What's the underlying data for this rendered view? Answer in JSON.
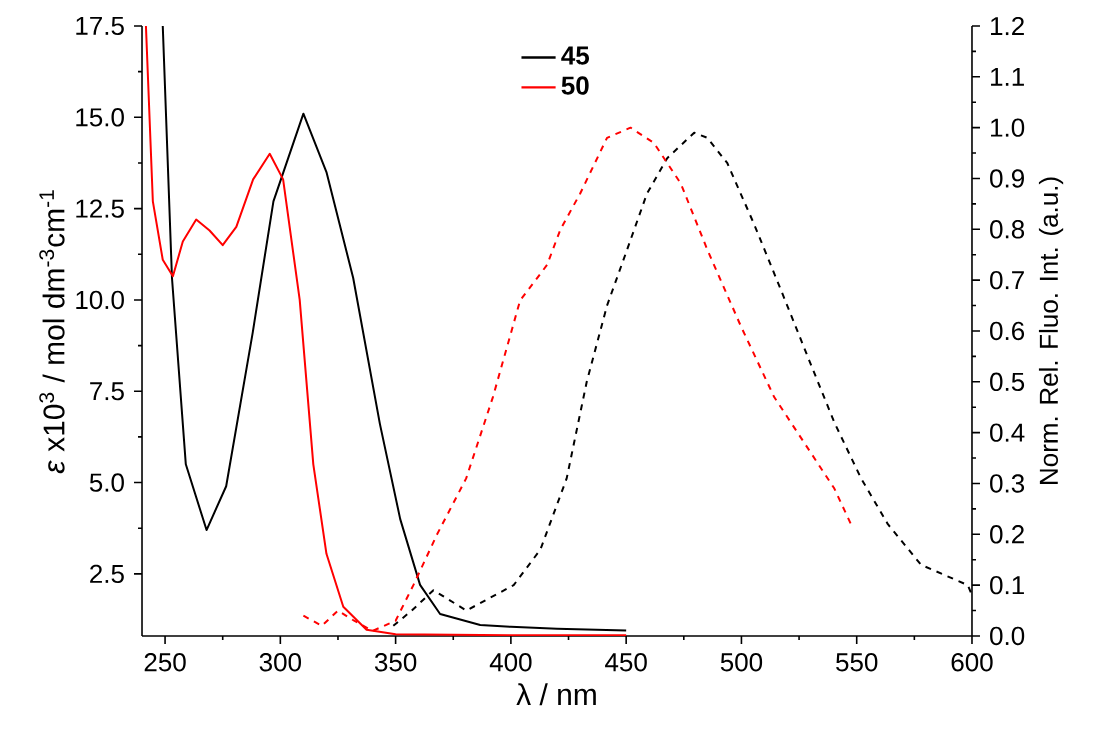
{
  "chart_data": {
    "type": "line",
    "xlabel": "λ / nm",
    "ylabel": "*ε* x10$^{3}$ / mol dm$^{-3}$cm$^{-1}$",
    "y2label": "Norm. Rel. Fluo. Int. (a.u.)",
    "xlim": [
      240,
      600
    ],
    "xticks": [
      250,
      300,
      350,
      400,
      450,
      500,
      550,
      600
    ],
    "ylim": [
      0.8,
      17.5
    ],
    "yticks": [
      2.5,
      {
        "value": 5,
        "label": "5.0"
      },
      7.5,
      {
        "value": 10,
        "label": "10.0"
      },
      12.5,
      {
        "value": 15,
        "label": "15.0"
      },
      17.5
    ],
    "y2lim": [
      0,
      1.2
    ],
    "y2ticks": [
      {
        "value": 0,
        "label": "0.0"
      },
      0.1,
      0.2,
      0.3,
      0.4,
      0.5,
      0.6,
      0.7,
      0.8,
      0.9,
      {
        "value": 1,
        "label": "1.0"
      },
      1.1,
      1.2
    ],
    "legend": "top",
    "series": [
      {
        "name": "45",
        "color": "#000000",
        "line_style": "solid",
        "x": [
          249,
          253,
          259,
          268,
          276.5,
          288,
          297,
          310,
          320,
          331.6,
          343.2,
          352,
          360.6,
          369.3,
          386.7,
          400,
          420,
          450
        ],
        "values": [
          17.5,
          10.6,
          5.5,
          3.7,
          4.9,
          9.1,
          12.7,
          15.1,
          13.5,
          10.6,
          6.6,
          4.0,
          2.2,
          1.4,
          1.1,
          1.05,
          1.0,
          0.95
        ]
      },
      {
        "name": "50",
        "color": "#ff0000",
        "line_style": "solid",
        "x": [
          241.7,
          244.7,
          249,
          253.4,
          257.7,
          263.5,
          269.3,
          275,
          280.9,
          288.2,
          295.4,
          301.2,
          308.4,
          314.3,
          320,
          327.3,
          337.4,
          350,
          400,
          450
        ],
        "values": [
          17.5,
          12.7,
          11.1,
          10.65,
          11.6,
          12.2,
          11.9,
          11.5,
          12.0,
          13.3,
          14.0,
          13.3,
          10.0,
          5.5,
          3.05,
          1.6,
          0.97,
          0.85,
          0.82,
          0.82
        ]
      },
      {
        "color": "#000000",
        "line_style": "dashed",
        "axis": "y2",
        "x": [
          349,
          357,
          366.4,
          380.7,
          401.2,
          412.8,
          424.2,
          432.9,
          441.7,
          450.4,
          459,
          467.8,
          479.5,
          485.2,
          493.9,
          505.5,
          517.2,
          528.7,
          540.3,
          551.9,
          563.5,
          577.9,
          598.2,
          600
        ],
        "values": [
          0.02,
          0.05,
          0.09,
          0.05,
          0.1,
          0.17,
          0.31,
          0.5,
          0.65,
          0.76,
          0.87,
          0.94,
          0.99,
          0.98,
          0.93,
          0.81,
          0.68,
          0.55,
          0.42,
          0.31,
          0.22,
          0.14,
          0.1,
          0.08
        ]
      },
      {
        "color": "#ff0000",
        "line_style": "dashed",
        "axis": "y2",
        "x": [
          310,
          318,
          325,
          332,
          340,
          350,
          357.7,
          368,
          380.6,
          392.2,
          404,
          415.7,
          421.5,
          430,
          441.7,
          451.9,
          462,
          473.7,
          485.2,
          499.7,
          514.2,
          528.7,
          540.3,
          547.5
        ],
        "values": [
          0.04,
          0.02,
          0.05,
          0.03,
          0.01,
          0.03,
          0.1,
          0.2,
          0.31,
          0.47,
          0.66,
          0.73,
          0.8,
          0.87,
          0.98,
          1.0,
          0.97,
          0.89,
          0.76,
          0.61,
          0.47,
          0.37,
          0.29,
          0.22
        ]
      }
    ]
  }
}
